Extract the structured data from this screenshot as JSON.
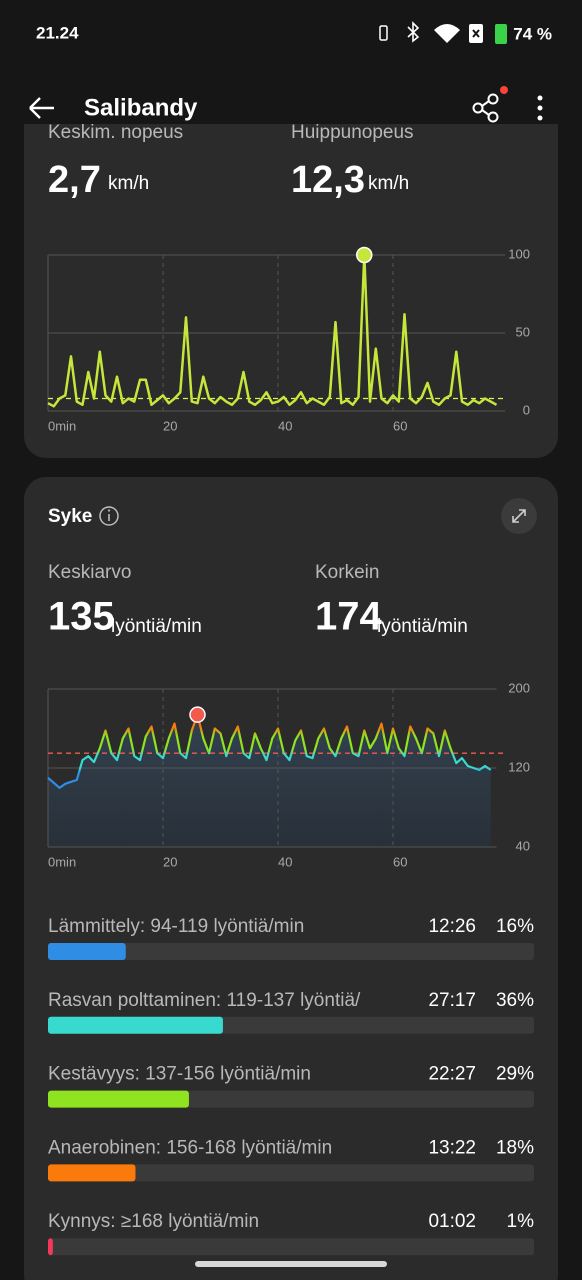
{
  "status_bar": {
    "time": "21.24",
    "battery": "74 %"
  },
  "header": {
    "title": "Salibandy"
  },
  "speed": {
    "average": {
      "label": "Keskim. nopeus",
      "value": "2,7",
      "unit": "km/h"
    },
    "max": {
      "label": "Huippunopeus",
      "value": "12,3",
      "unit": "km/h"
    },
    "chart": {
      "type": "line",
      "color": "#c5e63a",
      "x": [
        0,
        1,
        2,
        3,
        4,
        5,
        6,
        7,
        8,
        9,
        10,
        11,
        12,
        13,
        14,
        15,
        16,
        17,
        18,
        19,
        20,
        21,
        22,
        23,
        24,
        25,
        26,
        27,
        28,
        29,
        30,
        31,
        32,
        33,
        34,
        35,
        36,
        37,
        38,
        39,
        40,
        41,
        42,
        43,
        44,
        45,
        46,
        47,
        48,
        49,
        50,
        51,
        52,
        53,
        54,
        55,
        56,
        57,
        58,
        59,
        60,
        61,
        62,
        63,
        64,
        65,
        66,
        67,
        68,
        69,
        70,
        71,
        72,
        73,
        74,
        75,
        76,
        77,
        78
      ],
      "values": [
        5,
        3,
        8,
        10,
        35,
        6,
        4,
        25,
        8,
        38,
        10,
        6,
        22,
        5,
        8,
        6,
        20,
        20,
        4,
        7,
        10,
        5,
        8,
        12,
        60,
        6,
        5,
        22,
        8,
        5,
        9,
        6,
        4,
        8,
        25,
        6,
        4,
        7,
        12,
        5,
        6,
        9,
        4,
        7,
        12,
        5,
        8,
        6,
        4,
        9,
        57,
        5,
        7,
        4,
        9,
        100,
        6,
        40,
        8,
        5,
        10,
        6,
        62,
        8,
        5,
        9,
        18,
        6,
        4,
        8,
        10,
        38,
        6,
        4,
        7,
        5,
        8,
        6,
        4
      ],
      "average_line": 8,
      "xlim": [
        0,
        79.5
      ],
      "xticks": [
        {
          "value": 0,
          "label": "0min"
        },
        20,
        40,
        60
      ],
      "ylim": [
        0,
        100
      ],
      "yticks": [
        0,
        50,
        100
      ]
    }
  },
  "heart_rate": {
    "title": "Syke",
    "average": {
      "label": "Keskiarvo",
      "value": 135,
      "unit": "lyöntiä/min"
    },
    "max": {
      "label": "Korkein",
      "value": 174,
      "unit": "lyöntiä/min"
    },
    "chart": {
      "type": "area",
      "x": [
        0,
        1,
        2,
        3,
        4,
        5,
        6,
        7,
        8,
        9,
        10,
        11,
        12,
        13,
        14,
        15,
        16,
        17,
        18,
        19,
        20,
        21,
        22,
        23,
        24,
        25,
        26,
        27,
        28,
        29,
        30,
        31,
        32,
        33,
        34,
        35,
        36,
        37,
        38,
        39,
        40,
        41,
        42,
        43,
        44,
        45,
        46,
        47,
        48,
        49,
        50,
        51,
        52,
        53,
        54,
        55,
        56,
        57,
        58,
        59,
        60,
        61,
        62,
        63,
        64,
        65,
        66,
        67,
        68,
        69,
        70,
        71,
        72,
        73,
        74,
        75,
        76,
        77
      ],
      "values": [
        110,
        105,
        100,
        104,
        106,
        108,
        128,
        132,
        126,
        140,
        158,
        135,
        128,
        150,
        160,
        132,
        128,
        152,
        162,
        135,
        130,
        150,
        165,
        135,
        130,
        158,
        174,
        150,
        135,
        160,
        155,
        132,
        150,
        162,
        135,
        130,
        155,
        140,
        128,
        150,
        160,
        135,
        128,
        148,
        158,
        132,
        130,
        150,
        160,
        140,
        132,
        150,
        162,
        135,
        132,
        158,
        140,
        150,
        165,
        135,
        160,
        140,
        132,
        162,
        150,
        135,
        160,
        155,
        132,
        158,
        140,
        125,
        130,
        122,
        120,
        118,
        122,
        118
      ],
      "xlim": [
        0,
        78
      ],
      "xticks": [
        {
          "value": 0,
          "label": "0min"
        },
        20,
        40,
        60
      ],
      "ylim": [
        40,
        200
      ],
      "yticks": [
        40,
        120,
        200
      ]
    },
    "zones": [
      {
        "label": "Lämmittely: 94-119 lyöntiä/min",
        "time": "12:26",
        "percent": 16,
        "percent_label": "16%",
        "color": "#2f8de4"
      },
      {
        "label": "Rasvan polttaminen: 119-137 lyöntiä/",
        "time": "27:17",
        "percent": 36,
        "percent_label": "36%",
        "color": "#38d9cf"
      },
      {
        "label": "Kestävyys: 137-156 lyöntiä/min",
        "time": "22:27",
        "percent": 29,
        "percent_label": "29%",
        "color": "#8fe31f"
      },
      {
        "label": "Anaerobinen: 156-168 lyöntiä/min",
        "time": "13:22",
        "percent": 18,
        "percent_label": "18%",
        "color": "#fb7a0c"
      },
      {
        "label": "Kynnys: ≥168 lyöntiä/min",
        "time": "01:02",
        "percent": 1,
        "percent_label": "1%",
        "color": "#f2385c"
      }
    ]
  }
}
